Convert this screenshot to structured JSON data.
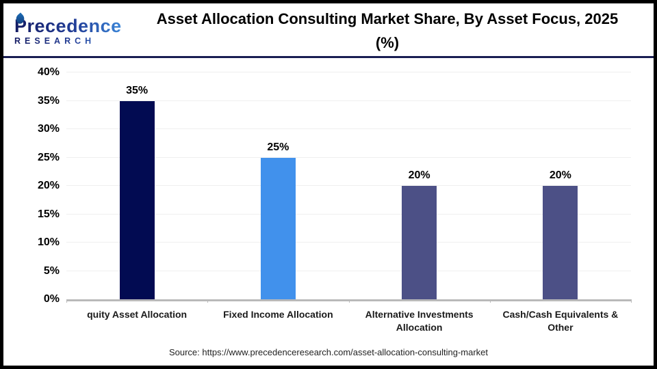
{
  "header": {
    "logo": {
      "brand": "Precedence",
      "sub": "RESEARCH"
    },
    "title": "Asset Allocation Consulting Market Share, By Asset Focus, 2025 (%)"
  },
  "chart_data": {
    "type": "bar",
    "title": "Asset Allocation Consulting Market Share, By Asset Focus, 2025 (%)",
    "categories": [
      "quity Asset Allocation",
      "Fixed Income Allocation",
      "Alternative Investments Allocation",
      "Cash/Cash Equivalents & Other"
    ],
    "values": [
      35,
      25,
      20,
      20
    ],
    "value_labels": [
      "35%",
      "25%",
      "20%",
      "20%"
    ],
    "bar_colors": [
      "#020b52",
      "#4191ec",
      "#4c5086",
      "#4c5086"
    ],
    "xlabel": "",
    "ylabel": "",
    "ylim": [
      0,
      40
    ],
    "ytick_step": 5,
    "ytick_suffix": "%",
    "grid": "horizontal-light",
    "legend": "none"
  },
  "footer": {
    "source": "Source: https://www.precedenceresearch.com/asset-allocation-consulting-market"
  },
  "colors": {
    "brand_gradient_start": "#141b63",
    "brand_gradient_end": "#3e8fe0",
    "header_divider": "#181d52",
    "axis_baseline": "#b9b9b9",
    "gridline": "#efefef"
  }
}
